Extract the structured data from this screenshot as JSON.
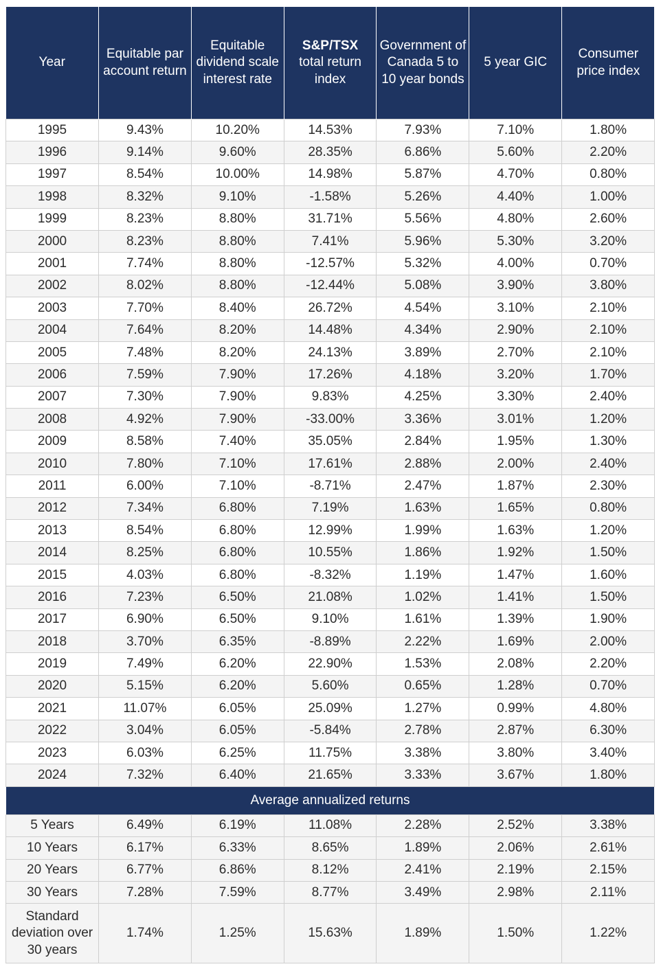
{
  "headers": [
    "Year",
    "Equitable par account return",
    "Equitable dividend scale interest rate",
    {
      "bold": "S&P/TSX",
      "rest": "total return index"
    },
    "Government of Canada 5 to 10 year bonds",
    "5 year GIC",
    "Consumer price index"
  ],
  "rows": [
    [
      "1995",
      "9.43%",
      "10.20%",
      "14.53%",
      "7.93%",
      "7.10%",
      "1.80%"
    ],
    [
      "1996",
      "9.14%",
      "9.60%",
      "28.35%",
      "6.86%",
      "5.60%",
      "2.20%"
    ],
    [
      "1997",
      "8.54%",
      "10.00%",
      "14.98%",
      "5.87%",
      "4.70%",
      "0.80%"
    ],
    [
      "1998",
      "8.32%",
      "9.10%",
      "-1.58%",
      "5.26%",
      "4.40%",
      "1.00%"
    ],
    [
      "1999",
      "8.23%",
      "8.80%",
      "31.71%",
      "5.56%",
      "4.80%",
      "2.60%"
    ],
    [
      "2000",
      "8.23%",
      "8.80%",
      "7.41%",
      "5.96%",
      "5.30%",
      "3.20%"
    ],
    [
      "2001",
      "7.74%",
      "8.80%",
      "-12.57%",
      "5.32%",
      "4.00%",
      "0.70%"
    ],
    [
      "2002",
      "8.02%",
      "8.80%",
      "-12.44%",
      "5.08%",
      "3.90%",
      "3.80%"
    ],
    [
      "2003",
      "7.70%",
      "8.40%",
      "26.72%",
      "4.54%",
      "3.10%",
      "2.10%"
    ],
    [
      "2004",
      "7.64%",
      "8.20%",
      "14.48%",
      "4.34%",
      "2.90%",
      "2.10%"
    ],
    [
      "2005",
      "7.48%",
      "8.20%",
      "24.13%",
      "3.89%",
      "2.70%",
      "2.10%"
    ],
    [
      "2006",
      "7.59%",
      "7.90%",
      "17.26%",
      "4.18%",
      "3.20%",
      "1.70%"
    ],
    [
      "2007",
      "7.30%",
      "7.90%",
      "9.83%",
      "4.25%",
      "3.30%",
      "2.40%"
    ],
    [
      "2008",
      "4.92%",
      "7.90%",
      "-33.00%",
      "3.36%",
      "3.01%",
      "1.20%"
    ],
    [
      "2009",
      "8.58%",
      "7.40%",
      "35.05%",
      "2.84%",
      "1.95%",
      "1.30%"
    ],
    [
      "2010",
      "7.80%",
      "7.10%",
      "17.61%",
      "2.88%",
      "2.00%",
      "2.40%"
    ],
    [
      "2011",
      "6.00%",
      "7.10%",
      "-8.71%",
      "2.47%",
      "1.87%",
      "2.30%"
    ],
    [
      "2012",
      "7.34%",
      "6.80%",
      "7.19%",
      "1.63%",
      "1.65%",
      "0.80%"
    ],
    [
      "2013",
      "8.54%",
      "6.80%",
      "12.99%",
      "1.99%",
      "1.63%",
      "1.20%"
    ],
    [
      "2014",
      "8.25%",
      "6.80%",
      "10.55%",
      "1.86%",
      "1.92%",
      "1.50%"
    ],
    [
      "2015",
      "4.03%",
      "6.80%",
      "-8.32%",
      "1.19%",
      "1.47%",
      "1.60%"
    ],
    [
      "2016",
      "7.23%",
      "6.50%",
      "21.08%",
      "1.02%",
      "1.41%",
      "1.50%"
    ],
    [
      "2017",
      "6.90%",
      "6.50%",
      "9.10%",
      "1.61%",
      "1.39%",
      "1.90%"
    ],
    [
      "2018",
      "3.70%",
      "6.35%",
      "-8.89%",
      "2.22%",
      "1.69%",
      "2.00%"
    ],
    [
      "2019",
      "7.49%",
      "6.20%",
      "22.90%",
      "1.53%",
      "2.08%",
      "2.20%"
    ],
    [
      "2020",
      "5.15%",
      "6.20%",
      "5.60%",
      "0.65%",
      "1.28%",
      "0.70%"
    ],
    [
      "2021",
      "11.07%",
      "6.05%",
      "25.09%",
      "1.27%",
      "0.99%",
      "4.80%"
    ],
    [
      "2022",
      "3.04%",
      "6.05%",
      "-5.84%",
      "2.78%",
      "2.87%",
      "6.30%"
    ],
    [
      "2023",
      "6.03%",
      "6.25%",
      "11.75%",
      "3.38%",
      "3.80%",
      "3.40%"
    ],
    [
      "2024",
      "7.32%",
      "6.40%",
      "21.65%",
      "3.33%",
      "3.67%",
      "1.80%"
    ]
  ],
  "section_title": "Average annualized returns",
  "averages": [
    [
      "5 Years",
      "6.49%",
      "6.19%",
      "11.08%",
      "2.28%",
      "2.52%",
      "3.38%"
    ],
    [
      "10 Years",
      "6.17%",
      "6.33%",
      "8.65%",
      "1.89%",
      "2.06%",
      "2.61%"
    ],
    [
      "20 Years",
      "6.77%",
      "6.86%",
      "8.12%",
      "2.41%",
      "2.19%",
      "2.15%"
    ],
    [
      "30 Years",
      "7.28%",
      "7.59%",
      "8.77%",
      "3.49%",
      "2.98%",
      "2.11%"
    ]
  ],
  "std_row": [
    "Standard deviation over 30 years",
    "1.74%",
    "1.25%",
    "15.63%",
    "1.89%",
    "1.50%",
    "1.22%"
  ],
  "colors": {
    "header_bg": "#1e3461",
    "header_text": "#ffffff",
    "stripe": "#f4f4f4",
    "border": "#cfcfcf",
    "text": "#2b2b2b"
  }
}
